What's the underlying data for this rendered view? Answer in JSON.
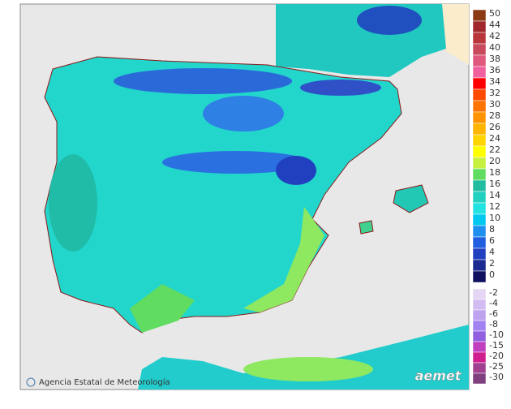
{
  "legend": {
    "warm": [
      {
        "label": 50,
        "color": "#8b3a12"
      },
      {
        "label": 44,
        "color": "#a0282c"
      },
      {
        "label": 42,
        "color": "#b8363c"
      },
      {
        "label": 40,
        "color": "#c84a5c"
      },
      {
        "label": 38,
        "color": "#e0587e"
      },
      {
        "label": 36,
        "color": "#f0609e"
      },
      {
        "label": 34,
        "color": "#ff0000"
      },
      {
        "label": 32,
        "color": "#ff4a00"
      },
      {
        "label": 30,
        "color": "#ff7400"
      },
      {
        "label": 28,
        "color": "#ff9400"
      },
      {
        "label": 26,
        "color": "#ffb400"
      },
      {
        "label": 24,
        "color": "#ffd400"
      },
      {
        "label": 22,
        "color": "#ffff00"
      },
      {
        "label": 20,
        "color": "#c8f040"
      },
      {
        "label": 18,
        "color": "#60dc60"
      },
      {
        "label": 16,
        "color": "#22bca0"
      },
      {
        "label": 14,
        "color": "#22d0c0"
      },
      {
        "label": 12,
        "color": "#22e2e2"
      },
      {
        "label": 10,
        "color": "#00c8f0"
      },
      {
        "label": 8,
        "color": "#2090f0"
      },
      {
        "label": 6,
        "color": "#2060e0"
      },
      {
        "label": 4,
        "color": "#2040c0"
      },
      {
        "label": 2,
        "color": "#1a2a90"
      },
      {
        "label": 0,
        "color": "#101060"
      }
    ],
    "cold": [
      {
        "label": -2,
        "color": "#e4d6f4"
      },
      {
        "label": -4,
        "color": "#d2bcf2"
      },
      {
        "label": -6,
        "color": "#bea2f0"
      },
      {
        "label": -8,
        "color": "#a282f0"
      },
      {
        "label": -10,
        "color": "#9060e0"
      },
      {
        "label": -15,
        "color": "#c040c0"
      },
      {
        "label": -20,
        "color": "#d02090"
      },
      {
        "label": -25,
        "color": "#a04090"
      },
      {
        "label": -30,
        "color": "#804080"
      }
    ]
  },
  "footer": {
    "credit": "Agencia Estatal de Meteorología",
    "logo": "aemet"
  }
}
